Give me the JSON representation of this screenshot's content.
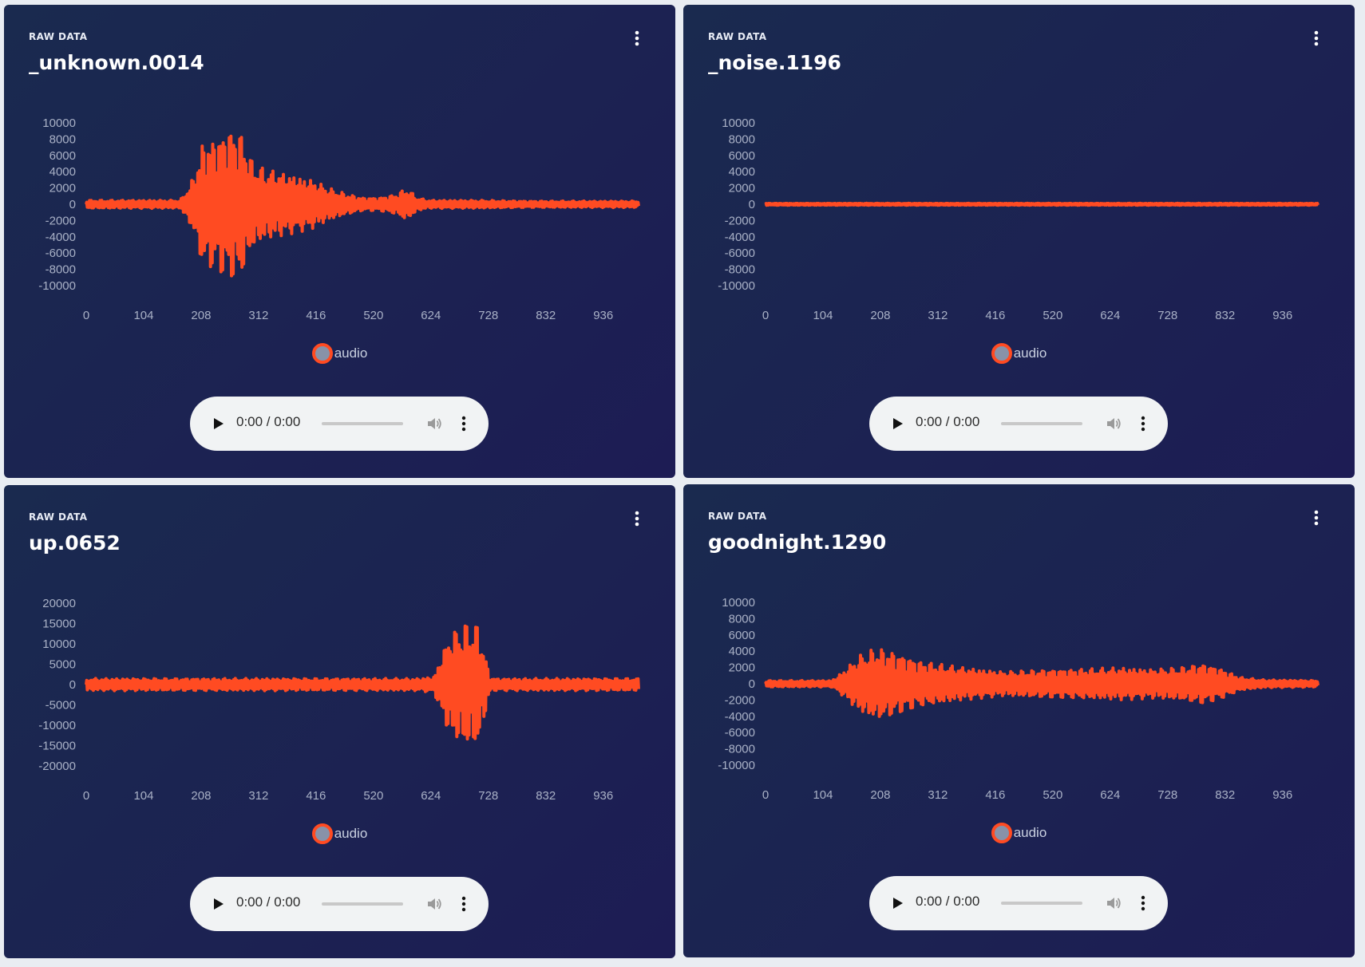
{
  "colors": {
    "series": "#ff4b22",
    "card_bg_start": "#1a2a4f",
    "card_bg_end": "#1d1c54",
    "axis_text": "#a9b1c6",
    "legend_marker_fill": "#8892a8"
  },
  "icons": {
    "menu": "vertical-dots-icon",
    "play": "play-icon",
    "volume": "volume-icon",
    "audio_menu": "vertical-dots-icon"
  },
  "cards": [
    {
      "label": "RAW DATA",
      "title": "_unknown.0014",
      "legend": "audio",
      "audio_time": "0:00 / 0:00",
      "chart_data": {
        "type": "line",
        "xlim": [
          0,
          1000
        ],
        "ylim": [
          -10000,
          10000
        ],
        "x_ticks": [
          "0",
          "104",
          "208",
          "312",
          "416",
          "520",
          "624",
          "728",
          "832",
          "936"
        ],
        "y_ticks": [
          "10000",
          "8000",
          "6000",
          "4000",
          "2000",
          "0",
          "-2000",
          "-4000",
          "-6000",
          "-8000",
          "-10000"
        ],
        "series": [
          {
            "name": "audio",
            "envelope_x": [
              0,
              170,
              180,
              195,
              210,
              240,
              260,
              280,
              300,
              320,
              350,
              380,
              410,
              440,
              470,
              500,
              530,
              560,
              580,
              600,
              620,
              700,
              800,
              1000
            ],
            "envelope_y": [
              500,
              500,
              1500,
              3500,
              7500,
              8500,
              9500,
              9000,
              5500,
              4500,
              4000,
              3500,
              3000,
              2000,
              1300,
              800,
              800,
              1200,
              2000,
              800,
              500,
              500,
              400,
              400
            ]
          }
        ]
      }
    },
    {
      "label": "RAW DATA",
      "title": "_noise.1196",
      "legend": "audio",
      "audio_time": "0:00 / 0:00",
      "chart_data": {
        "type": "line",
        "xlim": [
          0,
          1000
        ],
        "ylim": [
          -10000,
          10000
        ],
        "x_ticks": [
          "0",
          "104",
          "208",
          "312",
          "416",
          "520",
          "624",
          "728",
          "832",
          "936"
        ],
        "y_ticks": [
          "10000",
          "8000",
          "6000",
          "4000",
          "2000",
          "0",
          "-2000",
          "-4000",
          "-6000",
          "-8000",
          "-10000"
        ],
        "series": [
          {
            "name": "audio",
            "envelope_x": [
              0,
              1000
            ],
            "envelope_y": [
              120,
              120
            ]
          }
        ]
      }
    },
    {
      "label": "RAW DATA",
      "title": "up.0652",
      "legend": "audio",
      "audio_time": "0:00 / 0:00",
      "chart_data": {
        "type": "line",
        "xlim": [
          0,
          1000
        ],
        "ylim": [
          -20000,
          20000
        ],
        "x_ticks": [
          "0",
          "104",
          "208",
          "312",
          "416",
          "520",
          "624",
          "728",
          "832",
          "936"
        ],
        "y_ticks": [
          "20000",
          "15000",
          "10000",
          "5000",
          "0",
          "-5000",
          "-10000",
          "-15000",
          "-20000"
        ],
        "series": [
          {
            "name": "audio",
            "envelope_x": [
              0,
              600,
              630,
              645,
              660,
              690,
              710,
              720,
              730,
              740,
              800,
              1000
            ],
            "envelope_y": [
              1500,
              1500,
              2000,
              8000,
              13000,
              15500,
              15000,
              9000,
              2000,
              1500,
              1500,
              1500
            ]
          }
        ]
      }
    },
    {
      "label": "RAW DATA",
      "title": "goodnight.1290",
      "legend": "audio",
      "audio_time": "0:00 / 0:00",
      "chart_data": {
        "type": "line",
        "xlim": [
          0,
          1000
        ],
        "ylim": [
          -10000,
          10000
        ],
        "x_ticks": [
          "0",
          "104",
          "208",
          "312",
          "416",
          "520",
          "624",
          "728",
          "832",
          "936"
        ],
        "y_ticks": [
          "10000",
          "8000",
          "6000",
          "4000",
          "2000",
          "0",
          "-2000",
          "-4000",
          "-6000",
          "-8000",
          "-10000"
        ],
        "series": [
          {
            "name": "audio",
            "envelope_x": [
              0,
              120,
              140,
              170,
              200,
              230,
              250,
              280,
              310,
              360,
              430,
              500,
              560,
              640,
              700,
              750,
              790,
              820,
              860,
              900,
              1000
            ],
            "envelope_y": [
              400,
              400,
              1500,
              3500,
              4500,
              4000,
              3500,
              2800,
              2500,
              2000,
              1500,
              1700,
              1800,
              2000,
              1800,
              2000,
              2500,
              2000,
              800,
              500,
              400
            ]
          }
        ]
      }
    }
  ]
}
